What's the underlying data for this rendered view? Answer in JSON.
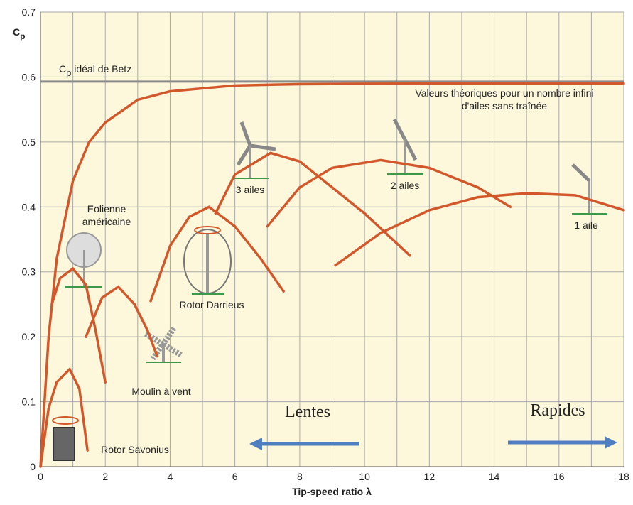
{
  "chart_data": {
    "type": "line",
    "y_label_main": "C",
    "y_label_sub": "p",
    "x_label": "Tip-speed ratio λ",
    "xlim": [
      0,
      18
    ],
    "xticks": [
      0,
      2,
      4,
      6,
      8,
      10,
      12,
      14,
      16,
      18
    ],
    "xminor": [
      1,
      3,
      5,
      7,
      9,
      11,
      13,
      15,
      17
    ],
    "ylim": [
      0,
      0.7
    ],
    "yticks": [
      0,
      0.1,
      0.2,
      0.3,
      0.4,
      0.5,
      0.6,
      0.7
    ],
    "grid": true,
    "betz": {
      "value": 0.593,
      "color": "#8a8a8a",
      "label_main": "C",
      "label_sub": "p",
      "label_rest": " idéal de Betz"
    },
    "series": [
      {
        "labels": [
          "Valeurs théoriques pour un nombre infini",
          "d'ailes sans traînée"
        ],
        "color": "#d2582b",
        "x": [
          0,
          0.25,
          0.5,
          1,
          1.5,
          2,
          3,
          4,
          6,
          8,
          12,
          18
        ],
        "values": [
          0,
          0.2,
          0.32,
          0.44,
          0.5,
          0.53,
          0.565,
          0.578,
          0.587,
          0.589,
          0.59,
          0.59
        ]
      },
      {
        "labels": [
          "Rotor Savonius"
        ],
        "color": "#d2582b",
        "x": [
          0,
          0.25,
          0.5,
          0.9,
          1.2,
          1.45
        ],
        "values": [
          0,
          0.09,
          0.13,
          0.15,
          0.12,
          0.025
        ]
      },
      {
        "labels": [
          "Eolienne",
          "américaine"
        ],
        "color": "#d2582b",
        "x": [
          0.35,
          0.6,
          1,
          1.4,
          1.7,
          2
        ],
        "values": [
          0.25,
          0.29,
          0.305,
          0.28,
          0.21,
          0.13
        ]
      },
      {
        "labels": [
          "Moulin à vent"
        ],
        "color": "#d2582b",
        "x": [
          1.4,
          1.9,
          2.4,
          2.9,
          3.3,
          3.6
        ],
        "values": [
          0.2,
          0.26,
          0.277,
          0.25,
          0.21,
          0.17
        ]
      },
      {
        "labels": [
          "Rotor Darrieus"
        ],
        "color": "#d2582b",
        "x": [
          3.4,
          4,
          4.6,
          5.2,
          6,
          6.8,
          7.5
        ],
        "values": [
          0.255,
          0.34,
          0.385,
          0.4,
          0.37,
          0.32,
          0.27
        ]
      },
      {
        "labels": [
          "3 ailes"
        ],
        "color": "#d2582b",
        "x": [
          5.4,
          6,
          7.1,
          8,
          9,
          10,
          11.4
        ],
        "values": [
          0.39,
          0.45,
          0.483,
          0.47,
          0.43,
          0.39,
          0.325
        ]
      },
      {
        "labels": [
          "2 ailes"
        ],
        "color": "#d2582b",
        "x": [
          7,
          8,
          9,
          10.5,
          12,
          13.5,
          14.5
        ],
        "values": [
          0.37,
          0.43,
          0.46,
          0.472,
          0.46,
          0.43,
          0.4
        ]
      },
      {
        "labels": [
          "1 aile"
        ],
        "color": "#d2582b",
        "x": [
          9.1,
          10.5,
          12,
          13.5,
          15,
          16.5,
          18
        ],
        "values": [
          0.31,
          0.36,
          0.395,
          0.415,
          0.421,
          0.418,
          0.395
        ]
      }
    ],
    "annotations": [
      "Lentes",
      "Rapides"
    ],
    "arrow_color": "#4f7fc0"
  }
}
